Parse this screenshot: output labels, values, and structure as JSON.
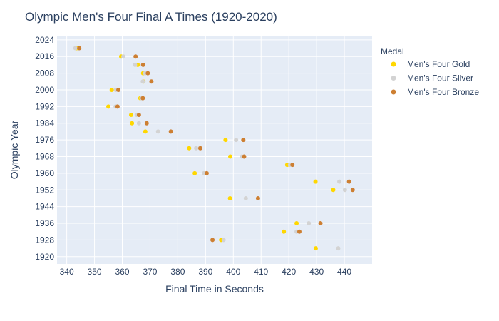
{
  "chart_data": {
    "type": "scatter",
    "title": "Olympic Men's Four Final A Times (1920-2020)",
    "xlabel": "Final Time in Seconds",
    "ylabel": "Olympic Year",
    "xlim": [
      336.5,
      450
    ],
    "ylim": [
      1916.5,
      2026
    ],
    "xticks": [
      340,
      350,
      360,
      370,
      380,
      390,
      400,
      410,
      420,
      430,
      440
    ],
    "yticks": [
      1920,
      1928,
      1936,
      1944,
      1952,
      1960,
      1968,
      1976,
      1984,
      1992,
      2000,
      2008,
      2016,
      2024
    ],
    "grid": true,
    "legend": {
      "title": "Medal",
      "placement": "right"
    },
    "series": [
      {
        "name": "Men's Four Gold",
        "color": "#FFD700",
        "points": [
          {
            "x": 429.7,
            "y": 1924
          },
          {
            "x": 395.6,
            "y": 1928
          },
          {
            "x": 418.2,
            "y": 1932
          },
          {
            "x": 422.8,
            "y": 1936
          },
          {
            "x": 398.8,
            "y": 1948
          },
          {
            "x": 436.0,
            "y": 1952
          },
          {
            "x": 429.6,
            "y": 1956
          },
          {
            "x": 386.1,
            "y": 1960
          },
          {
            "x": 419.4,
            "y": 1964
          },
          {
            "x": 398.9,
            "y": 1968
          },
          {
            "x": 384.1,
            "y": 1972
          },
          {
            "x": 397.2,
            "y": 1976
          },
          {
            "x": 368.3,
            "y": 1980
          },
          {
            "x": 363.5,
            "y": 1984
          },
          {
            "x": 363.2,
            "y": 1988
          },
          {
            "x": 355.0,
            "y": 1992
          },
          {
            "x": 366.5,
            "y": 1996
          },
          {
            "x": 356.2,
            "y": 2000
          },
          {
            "x": 367.6,
            "y": 2004
          },
          {
            "x": 367.5,
            "y": 2008
          },
          {
            "x": 365.6,
            "y": 2012
          },
          {
            "x": 359.6,
            "y": 2016
          },
          {
            "x": 343.6,
            "y": 2020
          }
        ]
      },
      {
        "name": "Men's Four Sliver",
        "color": "#D3D3D3",
        "points": [
          {
            "x": 437.8,
            "y": 1924
          },
          {
            "x": 396.5,
            "y": 1928
          },
          {
            "x": 422.8,
            "y": 1932
          },
          {
            "x": 427.2,
            "y": 1936
          },
          {
            "x": 404.5,
            "y": 1948
          },
          {
            "x": 440.2,
            "y": 1952
          },
          {
            "x": 438.2,
            "y": 1956
          },
          {
            "x": 389.4,
            "y": 1960
          },
          {
            "x": 420.4,
            "y": 1964
          },
          {
            "x": 403.1,
            "y": 1968
          },
          {
            "x": 386.6,
            "y": 1972
          },
          {
            "x": 401.0,
            "y": 1976
          },
          {
            "x": 372.9,
            "y": 1980
          },
          {
            "x": 366.0,
            "y": 1984
          },
          {
            "x": 365.2,
            "y": 1988
          },
          {
            "x": 357.6,
            "y": 1992
          },
          {
            "x": 366.9,
            "y": 1996
          },
          {
            "x": 357.7,
            "y": 2000
          },
          {
            "x": 367.4,
            "y": 2004
          },
          {
            "x": 368.2,
            "y": 2008
          },
          {
            "x": 364.6,
            "y": 2012
          },
          {
            "x": 360.4,
            "y": 2016
          },
          {
            "x": 343.1,
            "y": 2020
          }
        ]
      },
      {
        "name": "Men's Four Bronze",
        "color": "#CD7F32",
        "points": [
          {
            "x": 392.5,
            "y": 1928
          },
          {
            "x": 423.8,
            "y": 1932
          },
          {
            "x": 431.4,
            "y": 1936
          },
          {
            "x": 408.9,
            "y": 1948
          },
          {
            "x": 443.0,
            "y": 1952
          },
          {
            "x": 441.7,
            "y": 1956
          },
          {
            "x": 390.4,
            "y": 1960
          },
          {
            "x": 421.3,
            "y": 1964
          },
          {
            "x": 403.9,
            "y": 1968
          },
          {
            "x": 388.1,
            "y": 1972
          },
          {
            "x": 403.6,
            "y": 1976
          },
          {
            "x": 377.5,
            "y": 1980
          },
          {
            "x": 368.8,
            "y": 1984
          },
          {
            "x": 366.0,
            "y": 1988
          },
          {
            "x": 358.3,
            "y": 1992
          },
          {
            "x": 367.4,
            "y": 1996
          },
          {
            "x": 358.6,
            "y": 2000
          },
          {
            "x": 370.5,
            "y": 2004
          },
          {
            "x": 369.2,
            "y": 2008
          },
          {
            "x": 367.5,
            "y": 2012
          },
          {
            "x": 364.8,
            "y": 2016
          },
          {
            "x": 344.5,
            "y": 2020
          }
        ]
      }
    ]
  }
}
